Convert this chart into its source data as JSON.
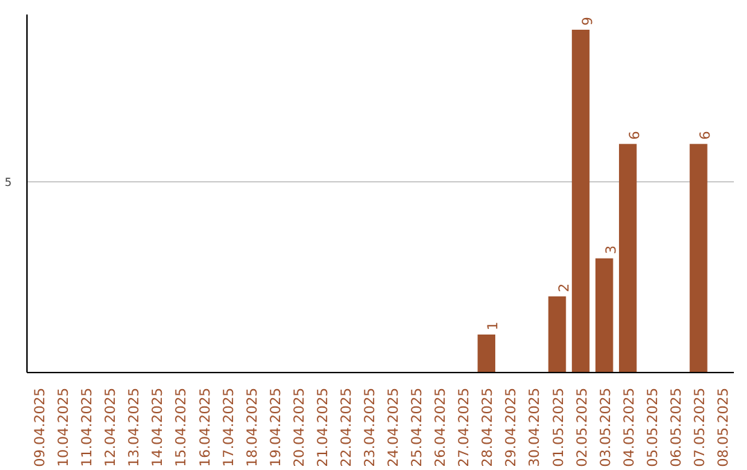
{
  "chart_data": {
    "type": "bar",
    "categories": [
      "09.04.2025",
      "10.04.2025",
      "11.04.2025",
      "12.04.2025",
      "13.04.2025",
      "14.04.2025",
      "15.04.2025",
      "16.04.2025",
      "17.04.2025",
      "18.04.2025",
      "19.04.2025",
      "20.04.2025",
      "21.04.2025",
      "22.04.2025",
      "23.04.2025",
      "24.04.2025",
      "25.04.2025",
      "26.04.2025",
      "27.04.2025",
      "28.04.2025",
      "29.04.2025",
      "30.04.2025",
      "01.05.2025",
      "02.05.2025",
      "03.05.2025",
      "04.05.2025",
      "05.05.2025",
      "06.05.2025",
      "07.05.2025",
      "08.05.2025"
    ],
    "values": [
      null,
      null,
      null,
      null,
      null,
      null,
      null,
      null,
      null,
      null,
      null,
      null,
      null,
      null,
      null,
      null,
      null,
      null,
      null,
      1,
      null,
      null,
      2,
      9,
      3,
      6,
      null,
      null,
      6,
      null
    ],
    "color": "#a0522d",
    "ylim": [
      0,
      9.4
    ],
    "yticks": [
      5
    ],
    "grid": "y",
    "data_labels": true
  }
}
